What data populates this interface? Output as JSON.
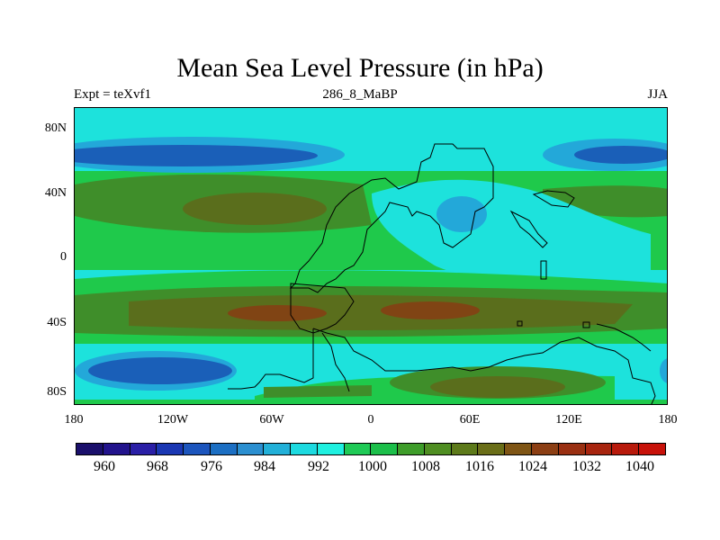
{
  "title": "Mean Sea Level Pressure (in hPa)",
  "subtitle_left": "Expt = teXvf1",
  "subtitle_center": "286_8_MaBP",
  "subtitle_right": "JJA",
  "y_ticks": [
    "80N",
    "40N",
    "0",
    "40S",
    "80S"
  ],
  "x_ticks": [
    "180",
    "120W",
    "60W",
    "0",
    "60E",
    "120E",
    "180"
  ],
  "colorbar": {
    "colors": [
      "#1a0f6b",
      "#22138c",
      "#2a1fa6",
      "#1a37b3",
      "#1c55bd",
      "#1c6fc3",
      "#2b8fd0",
      "#22b0d8",
      "#1ddae0",
      "#1ff0e0",
      "#1fca56",
      "#1cbf4a",
      "#3e9d2a",
      "#4f8e22",
      "#5d7a1a",
      "#6a6e18",
      "#7f5515",
      "#8c3f14",
      "#9a3012",
      "#a8250f",
      "#b81a0c",
      "#c8120a"
    ],
    "labels": [
      "960",
      "968",
      "976",
      "984",
      "992",
      "1000",
      "1008",
      "1016",
      "1024",
      "1032",
      "1040"
    ]
  },
  "map": {
    "palette": {
      "cyan": "#1de2dc",
      "lightblue": "#23a8d9",
      "blue": "#1a5fb8",
      "green": "#1fc94b",
      "olive": "#3f8e2a",
      "darkolive": "#5a6e1c",
      "brown": "#804414"
    }
  }
}
